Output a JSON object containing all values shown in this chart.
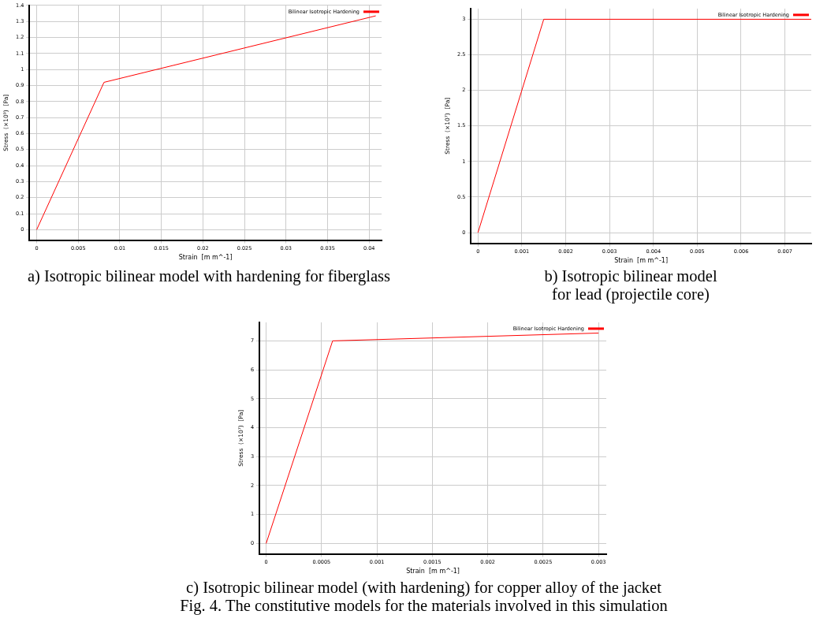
{
  "chart_data": [
    {
      "type": "line",
      "title": "a) Isotropic bilinear model with hardening for fiberglass",
      "xlabel": "Strain  [m m^-1]",
      "ylabel": "Stress  (×10⁹)  [Pa]",
      "series": [
        {
          "name": "Bilinear Isotropic Hardening",
          "color": "#ff0000",
          "x": [
            0,
            0.0081,
            0.0408
          ],
          "values": [
            0,
            0.92,
            1.335
          ]
        }
      ],
      "xlim": [
        -0.00087,
        0.0415
      ],
      "xticks": [
        0,
        0.005,
        0.01,
        0.015,
        0.02,
        0.025,
        0.03,
        0.035,
        0.04
      ],
      "ylim": [
        -0.065,
        1.4
      ],
      "yticks": [
        0,
        0.1,
        0.2,
        0.3,
        0.4,
        0.5,
        0.6,
        0.7,
        0.8,
        0.9,
        1,
        1.1,
        1.2,
        1.3,
        1.4
      ],
      "grid": true,
      "legend": "top right",
      "marker": "none",
      "line_style": "solid"
    },
    {
      "type": "line",
      "title": "b) Isotropic bilinear model\nfor lead (projectile core)",
      "xlabel": "Strain  [m m^-1]",
      "ylabel": "Stress  (×10⁷)  [Pa]",
      "series": [
        {
          "name": "Bilinear Isotropic Hardening",
          "color": "#ff0000",
          "x": [
            0,
            0.0015,
            0.0076
          ],
          "values": [
            0,
            3,
            3
          ]
        }
      ],
      "xlim": [
        -0.00016,
        0.0076
      ],
      "xticks": [
        0,
        0.001,
        0.002,
        0.003,
        0.004,
        0.005,
        0.006,
        0.007
      ],
      "ylim": [
        -0.15,
        3.15
      ],
      "yticks": [
        0,
        0.5,
        1,
        1.5,
        2,
        2.5,
        3
      ],
      "grid": true,
      "legend": "top right",
      "marker": "none",
      "line_style": "solid"
    },
    {
      "type": "line",
      "title": "c) Isotropic bilinear model (with hardening) for copper alloy of the jacket",
      "xlabel": "Strain  [m m^-1]",
      "ylabel": "Stress  (×10⁷)  [Pa]",
      "series": [
        {
          "name": "Bilinear Isotropic Hardening",
          "color": "#ff0000",
          "x": [
            0,
            0.0006,
            0.003
          ],
          "values": [
            0,
            7,
            7.27
          ]
        }
      ],
      "xlim": [
        -6e-05,
        0.00307
      ],
      "xticks": [
        0,
        0.0005,
        0.001,
        0.0015,
        0.002,
        0.0025,
        0.003
      ],
      "ylim": [
        -0.36,
        7.64
      ],
      "yticks": [
        0,
        1,
        2,
        3,
        4,
        5,
        6,
        7
      ],
      "grid": true,
      "legend": "top right",
      "marker": "none",
      "line_style": "solid",
      "annotations": [
        "Fig. 4. The constitutive models for the materials involved in this simulation"
      ]
    }
  ]
}
